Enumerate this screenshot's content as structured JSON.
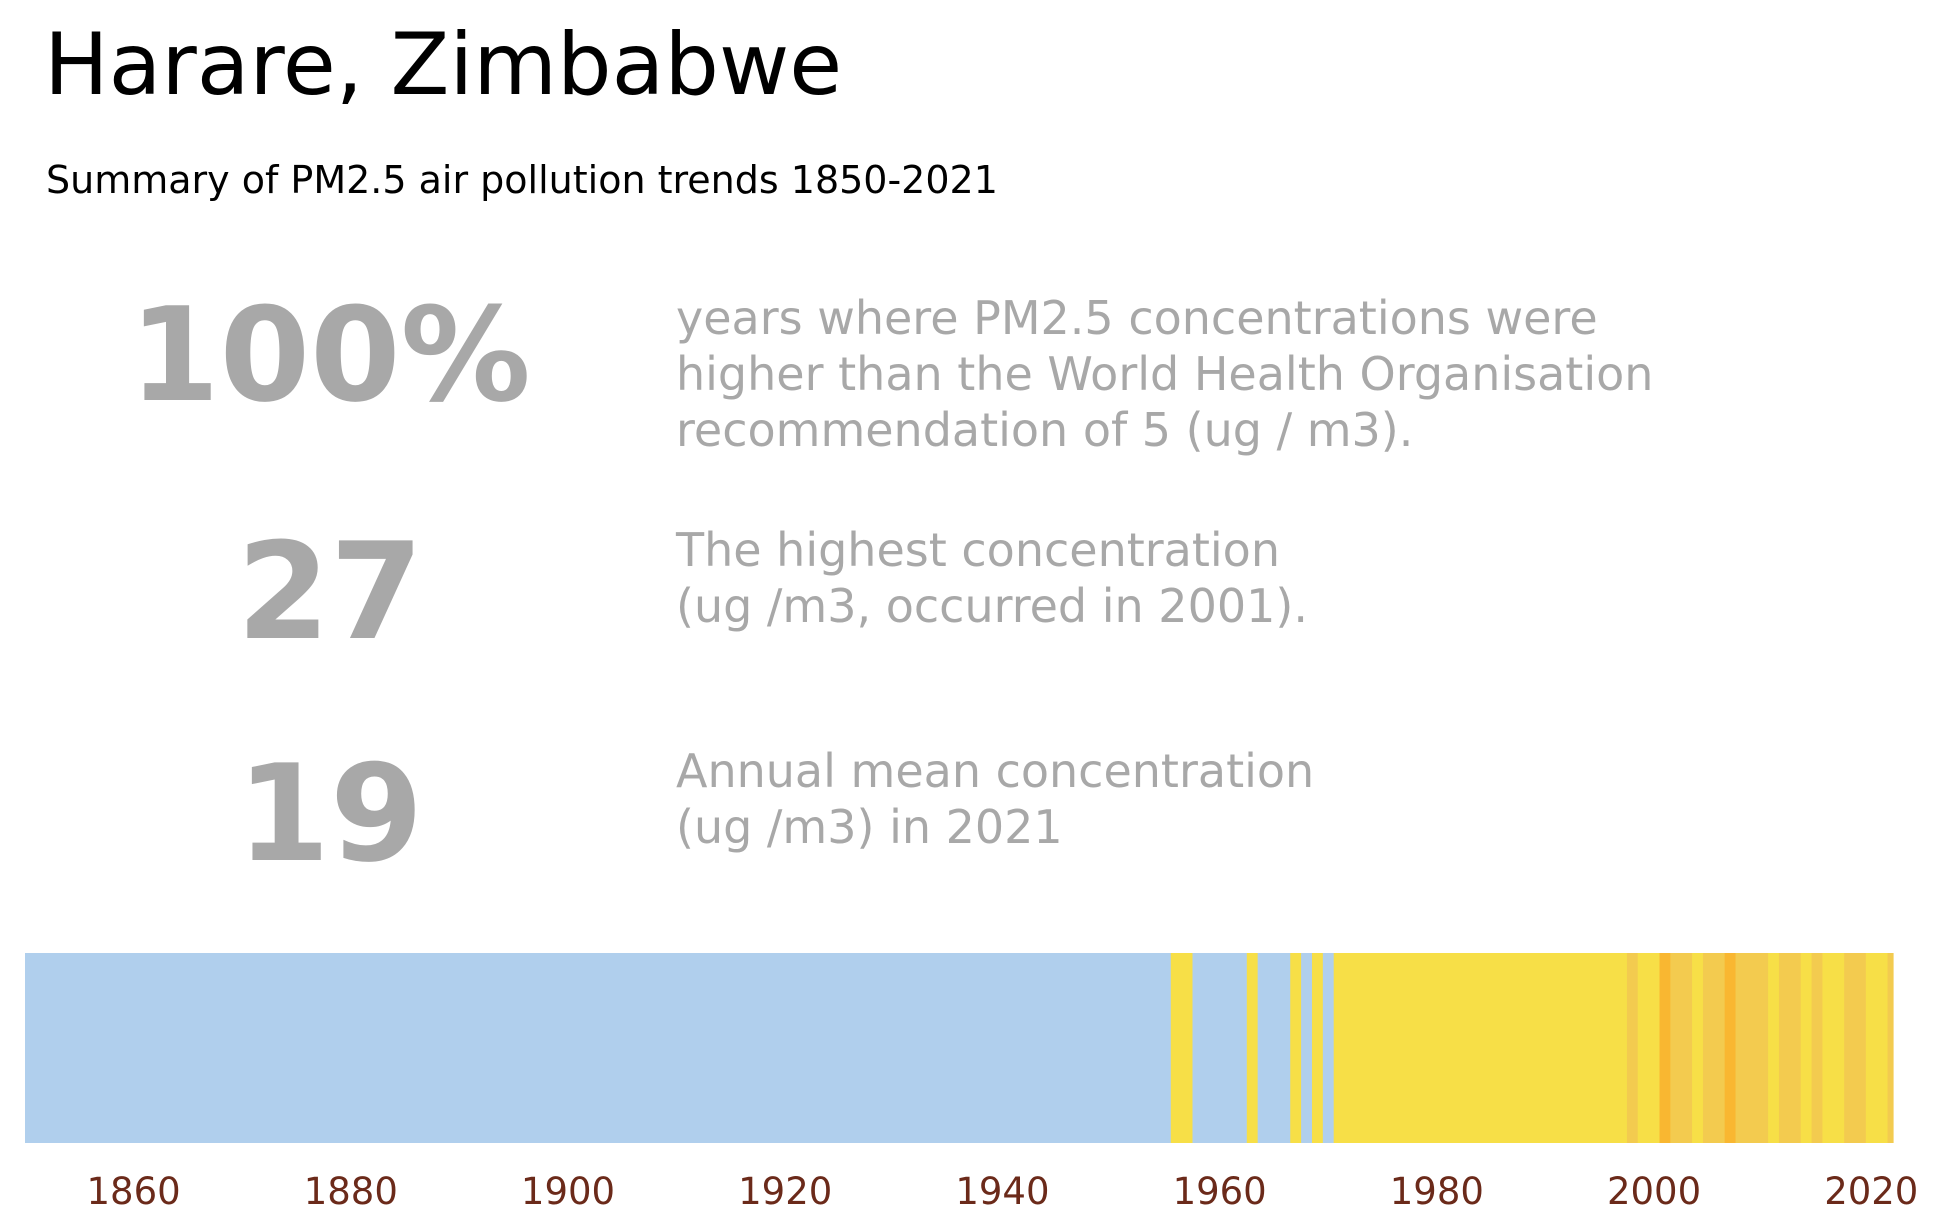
{
  "title": "Harare, Zimbabwe",
  "subtitle": "Summary of PM2.5 air pollution trends 1850-2021",
  "stats": [
    {
      "value": "100%",
      "lines": [
        "years where PM2.5 concentrations were",
        "higher than the World Health Organisation",
        "recommendation of 5 (ug / m3)."
      ]
    },
    {
      "value": "27",
      "lines": [
        "The highest concentration",
        "(ug /m3, occurred in 2001)."
      ]
    },
    {
      "value": "19",
      "lines": [
        "Annual mean concentration",
        "(ug /m3) in 2021"
      ]
    }
  ],
  "chart_data": {
    "type": "heatmap",
    "description_of_encoding": "warming-stripes style: one vertical stripe per year colored by PM2.5 level",
    "x_range": [
      1850,
      2022
    ],
    "x_ticks": [
      1860,
      1880,
      1900,
      1920,
      1940,
      1960,
      1980,
      2000,
      2020
    ],
    "tick_label_color": "#6b2a1a",
    "colors": {
      "low": "#b0cfed",
      "mid": "#f7df47",
      "high": "#f3cb4f",
      "peak": "#f9b731"
    },
    "segments": [
      {
        "start": 1850,
        "end": 1955.5,
        "level": "low"
      },
      {
        "start": 1955.5,
        "end": 1957.5,
        "level": "mid"
      },
      {
        "start": 1957.5,
        "end": 1962.5,
        "level": "low"
      },
      {
        "start": 1962.5,
        "end": 1963.5,
        "level": "mid"
      },
      {
        "start": 1963.5,
        "end": 1966.5,
        "level": "low"
      },
      {
        "start": 1966.5,
        "end": 1967.5,
        "level": "mid"
      },
      {
        "start": 1967.5,
        "end": 1968.5,
        "level": "low"
      },
      {
        "start": 1968.5,
        "end": 1969.5,
        "level": "mid"
      },
      {
        "start": 1969.5,
        "end": 1970.5,
        "level": "low"
      },
      {
        "start": 1970.5,
        "end": 1997.5,
        "level": "mid"
      },
      {
        "start": 1997.5,
        "end": 1998.5,
        "level": "high"
      },
      {
        "start": 1998.5,
        "end": 2000.5,
        "level": "mid"
      },
      {
        "start": 2000.5,
        "end": 2001.5,
        "level": "peak"
      },
      {
        "start": 2001.5,
        "end": 2003.5,
        "level": "high"
      },
      {
        "start": 2003.5,
        "end": 2004.5,
        "level": "mid"
      },
      {
        "start": 2004.5,
        "end": 2006.5,
        "level": "high"
      },
      {
        "start": 2006.5,
        "end": 2007.5,
        "level": "peak"
      },
      {
        "start": 2007.5,
        "end": 2010.5,
        "level": "high"
      },
      {
        "start": 2010.5,
        "end": 2011.5,
        "level": "mid"
      },
      {
        "start": 2011.5,
        "end": 2013.5,
        "level": "high"
      },
      {
        "start": 2013.5,
        "end": 2014.5,
        "level": "mid"
      },
      {
        "start": 2014.5,
        "end": 2015.5,
        "level": "high"
      },
      {
        "start": 2015.5,
        "end": 2017.5,
        "level": "mid"
      },
      {
        "start": 2017.5,
        "end": 2019.5,
        "level": "high"
      },
      {
        "start": 2019.5,
        "end": 2021.5,
        "level": "mid"
      },
      {
        "start": 2021.5,
        "end": 2022,
        "level": "high"
      }
    ]
  }
}
